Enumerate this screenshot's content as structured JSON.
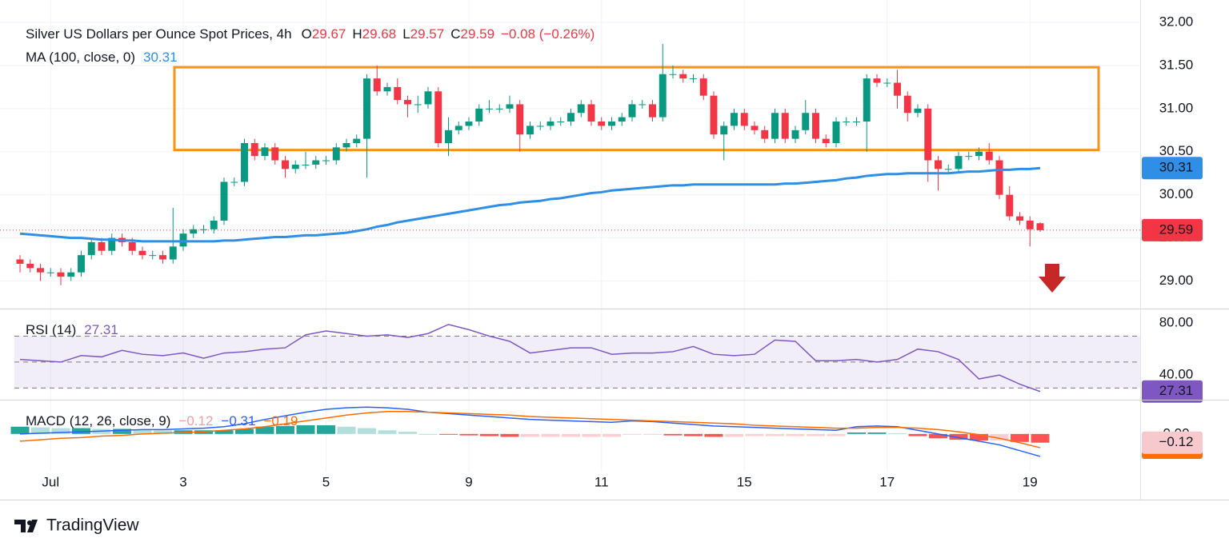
{
  "chart_data": [
    {
      "type": "candlestick",
      "title": "Silver US Dollars per Ounce Spot Prices, 4h",
      "ohlc": [
        {
          "label": "O",
          "value": "29.67"
        },
        {
          "label": "H",
          "value": "29.68"
        },
        {
          "label": "L",
          "value": "29.57"
        },
        {
          "label": "C",
          "value": "29.59"
        }
      ],
      "change": "−0.08 (−0.26%)",
      "up_color": "#089981",
      "down_color": "#f23645",
      "categories": [
        null,
        null,
        null,
        "Jul",
        null,
        null,
        null,
        null,
        null,
        null,
        null,
        null,
        null,
        null,
        null,
        null,
        "3",
        null,
        null,
        null,
        null,
        null,
        null,
        null,
        null,
        null,
        null,
        null,
        null,
        null,
        "5",
        null,
        null,
        null,
        null,
        null,
        null,
        null,
        null,
        null,
        null,
        null,
        null,
        null,
        "9",
        null,
        null,
        null,
        null,
        null,
        null,
        null,
        null,
        null,
        null,
        null,
        null,
        "11",
        null,
        null,
        null,
        null,
        null,
        null,
        null,
        null,
        null,
        null,
        null,
        null,
        null,
        "15",
        null,
        null,
        null,
        null,
        null,
        null,
        null,
        null,
        null,
        null,
        null,
        null,
        null,
        "17",
        null,
        null,
        null,
        null,
        null,
        null,
        null,
        null,
        null,
        null,
        null,
        null,
        null,
        "19",
        null
      ],
      "candles": [
        [
          29.25,
          29.3,
          29.1,
          29.2
        ],
        [
          29.2,
          29.25,
          29.1,
          29.15
        ],
        [
          29.15,
          29.2,
          29.0,
          29.1
        ],
        [
          29.1,
          29.15,
          29.05,
          29.1
        ],
        [
          29.1,
          29.15,
          28.95,
          29.05
        ],
        [
          29.05,
          29.15,
          29.0,
          29.1
        ],
        [
          29.1,
          29.35,
          29.05,
          29.3
        ],
        [
          29.3,
          29.5,
          29.25,
          29.45
        ],
        [
          29.45,
          29.5,
          29.3,
          29.35
        ],
        [
          29.35,
          29.55,
          29.3,
          29.5
        ],
        [
          29.5,
          29.55,
          29.4,
          29.45
        ],
        [
          29.45,
          29.5,
          29.3,
          29.35
        ],
        [
          29.35,
          29.4,
          29.25,
          29.3
        ],
        [
          29.3,
          29.35,
          29.25,
          29.3
        ],
        [
          29.3,
          29.35,
          29.2,
          29.25
        ],
        [
          29.25,
          29.85,
          29.2,
          29.4
        ],
        [
          29.4,
          29.6,
          29.35,
          29.55
        ],
        [
          29.55,
          29.65,
          29.5,
          29.6
        ],
        [
          29.6,
          29.65,
          29.55,
          29.6
        ],
        [
          29.6,
          29.75,
          29.55,
          29.7
        ],
        [
          29.7,
          30.2,
          29.65,
          30.15
        ],
        [
          30.15,
          30.2,
          30.1,
          30.15
        ],
        [
          30.15,
          30.65,
          30.1,
          30.6
        ],
        [
          30.6,
          30.65,
          30.4,
          30.45
        ],
        [
          30.45,
          30.6,
          30.4,
          30.55
        ],
        [
          30.55,
          30.6,
          30.35,
          30.4
        ],
        [
          30.4,
          30.45,
          30.2,
          30.3
        ],
        [
          30.3,
          30.4,
          30.25,
          30.35
        ],
        [
          30.35,
          30.5,
          30.3,
          30.35
        ],
        [
          30.35,
          30.45,
          30.3,
          30.4
        ],
        [
          30.4,
          30.45,
          30.35,
          30.4
        ],
        [
          30.4,
          30.6,
          30.35,
          30.55
        ],
        [
          30.55,
          30.65,
          30.5,
          30.6
        ],
        [
          30.6,
          30.7,
          30.55,
          30.65
        ],
        [
          30.65,
          31.4,
          30.2,
          31.35
        ],
        [
          31.35,
          31.5,
          31.15,
          31.2
        ],
        [
          31.2,
          31.3,
          31.15,
          31.25
        ],
        [
          31.25,
          31.35,
          31.05,
          31.1
        ],
        [
          31.1,
          31.15,
          30.9,
          31.05
        ],
        [
          31.05,
          31.15,
          30.95,
          31.05
        ],
        [
          31.05,
          31.25,
          31.0,
          31.2
        ],
        [
          31.2,
          31.25,
          30.55,
          30.6
        ],
        [
          30.6,
          30.9,
          30.45,
          30.75
        ],
        [
          30.75,
          30.85,
          30.7,
          30.8
        ],
        [
          30.8,
          30.9,
          30.75,
          30.85
        ],
        [
          30.85,
          31.05,
          30.8,
          31.0
        ],
        [
          31.0,
          31.1,
          30.95,
          31.0
        ],
        [
          31.0,
          31.05,
          30.95,
          31.0
        ],
        [
          31.0,
          31.15,
          30.95,
          31.05
        ],
        [
          31.05,
          31.1,
          30.5,
          30.7
        ],
        [
          30.7,
          30.85,
          30.65,
          30.8
        ],
        [
          30.8,
          30.85,
          30.75,
          30.8
        ],
        [
          30.8,
          30.9,
          30.75,
          30.85
        ],
        [
          30.85,
          30.9,
          30.8,
          30.85
        ],
        [
          30.85,
          31.0,
          30.8,
          30.95
        ],
        [
          30.95,
          31.1,
          30.9,
          31.05
        ],
        [
          31.05,
          31.1,
          30.8,
          30.85
        ],
        [
          30.85,
          30.9,
          30.75,
          30.8
        ],
        [
          30.8,
          30.9,
          30.75,
          30.85
        ],
        [
          30.85,
          30.95,
          30.8,
          30.9
        ],
        [
          30.9,
          31.1,
          30.85,
          31.05
        ],
        [
          31.05,
          31.1,
          31.0,
          31.05
        ],
        [
          31.05,
          31.1,
          30.85,
          30.9
        ],
        [
          30.9,
          31.75,
          30.85,
          31.4
        ],
        [
          31.4,
          31.5,
          31.35,
          31.4
        ],
        [
          31.4,
          31.45,
          31.3,
          31.35
        ],
        [
          31.35,
          31.4,
          31.3,
          31.35
        ],
        [
          31.35,
          31.4,
          31.1,
          31.15
        ],
        [
          31.15,
          31.2,
          30.65,
          30.7
        ],
        [
          30.7,
          30.85,
          30.4,
          30.8
        ],
        [
          30.8,
          31.0,
          30.75,
          30.95
        ],
        [
          30.95,
          31.0,
          30.75,
          30.8
        ],
        [
          30.8,
          30.85,
          30.7,
          30.75
        ],
        [
          30.75,
          30.8,
          30.6,
          30.65
        ],
        [
          30.65,
          31.0,
          30.6,
          30.95
        ],
        [
          30.95,
          31.0,
          30.6,
          30.65
        ],
        [
          30.65,
          30.8,
          30.6,
          30.75
        ],
        [
          30.75,
          31.1,
          30.7,
          30.95
        ],
        [
          30.95,
          31.0,
          30.6,
          30.65
        ],
        [
          30.65,
          30.7,
          30.55,
          30.6
        ],
        [
          30.6,
          30.9,
          30.55,
          30.85
        ],
        [
          30.85,
          30.9,
          30.8,
          30.85
        ],
        [
          30.85,
          30.9,
          30.8,
          30.85
        ],
        [
          30.85,
          31.4,
          30.5,
          31.35
        ],
        [
          31.35,
          31.4,
          31.25,
          31.3
        ],
        [
          31.3,
          31.35,
          31.25,
          31.3
        ],
        [
          31.3,
          31.45,
          31.0,
          31.15
        ],
        [
          31.15,
          31.2,
          30.85,
          30.95
        ],
        [
          30.95,
          31.05,
          30.9,
          31.0
        ],
        [
          31.0,
          31.05,
          30.15,
          30.4
        ],
        [
          30.4,
          30.45,
          30.05,
          30.3
        ],
        [
          30.3,
          30.35,
          30.25,
          30.3
        ],
        [
          30.3,
          30.5,
          30.25,
          30.45
        ],
        [
          30.45,
          30.5,
          30.4,
          30.45
        ],
        [
          30.45,
          30.55,
          30.4,
          30.5
        ],
        [
          30.5,
          30.6,
          30.35,
          30.4
        ],
        [
          30.4,
          30.45,
          29.95,
          30.0
        ],
        [
          30.0,
          30.1,
          29.7,
          29.75
        ],
        [
          29.75,
          29.8,
          29.65,
          29.7
        ],
        [
          29.7,
          29.75,
          29.4,
          29.6
        ],
        [
          29.67,
          29.68,
          29.57,
          29.59
        ]
      ],
      "last_label": "29.59",
      "ma": {
        "name": "MA (100, close, 0)",
        "color": "#2f8ee5",
        "last_label": "30.31",
        "values": [
          29.55,
          29.54,
          29.53,
          29.52,
          29.51,
          29.5,
          29.5,
          29.49,
          29.48,
          29.48,
          29.47,
          29.47,
          29.46,
          29.46,
          29.46,
          29.46,
          29.46,
          29.46,
          29.46,
          29.46,
          29.47,
          29.47,
          29.48,
          29.49,
          29.5,
          29.51,
          29.51,
          29.52,
          29.53,
          29.53,
          29.54,
          29.55,
          29.56,
          29.58,
          29.6,
          29.63,
          29.65,
          29.68,
          29.7,
          29.72,
          29.74,
          29.76,
          29.78,
          29.8,
          29.82,
          29.84,
          29.86,
          29.88,
          29.89,
          29.91,
          29.92,
          29.93,
          29.95,
          29.96,
          29.98,
          30.0,
          30.02,
          30.03,
          30.05,
          30.06,
          30.07,
          30.08,
          30.09,
          30.1,
          30.11,
          30.11,
          30.12,
          30.12,
          30.12,
          30.12,
          30.12,
          30.12,
          30.12,
          30.12,
          30.12,
          30.13,
          30.13,
          30.14,
          30.15,
          30.16,
          30.17,
          30.19,
          30.2,
          30.22,
          30.23,
          30.24,
          30.24,
          30.25,
          30.25,
          30.25,
          30.25,
          30.25,
          30.26,
          30.27,
          30.27,
          30.28,
          30.29,
          30.29,
          30.3,
          30.3,
          30.31
        ]
      },
      "range_box": {
        "top": 31.48,
        "bottom": 30.52,
        "color": "#f7931a"
      },
      "ylim": [
        28.68,
        32.26
      ],
      "yticks": [
        {
          "value": 29,
          "label": "29.00"
        },
        {
          "value": 29.5,
          "label": "29.50"
        },
        {
          "value": 30,
          "label": "30.00"
        },
        {
          "value": 30.5,
          "label": "30.50"
        },
        {
          "value": 31,
          "label": "31.00"
        },
        {
          "value": 31.5,
          "label": "31.50"
        },
        {
          "value": 32,
          "label": "32.00"
        }
      ],
      "grid": true
    },
    {
      "type": "line",
      "title": "RSI (14)",
      "color": "#7e57c2",
      "values": [
        52,
        51,
        50,
        55,
        54,
        59,
        56,
        55,
        57,
        53,
        57,
        58,
        60,
        61,
        71,
        74,
        72,
        70,
        71,
        69,
        72,
        79,
        75,
        70,
        66,
        57,
        59,
        61,
        61,
        56,
        57,
        57,
        58,
        62,
        56,
        55,
        56,
        67,
        66,
        51,
        51,
        52,
        50,
        52,
        60,
        58,
        52,
        37,
        40,
        33,
        27.31
      ],
      "levels": [
        70,
        50,
        30
      ],
      "ylim": [
        21,
        90
      ],
      "yticks": [
        {
          "value": 80,
          "label": "80.00"
        },
        {
          "value": 40,
          "label": "40.00"
        }
      ]
    },
    {
      "type": "macd",
      "title": "MACD (12, 26, close, 9)",
      "series": [
        {
          "color": "#26a69a",
          "down_color": "#ff5252",
          "last_label": "−0.12",
          "values": [
            0.1,
            0.09,
            0.08,
            0.08,
            0.07,
            0.07,
            0.06,
            0.05,
            0.05,
            0.05,
            0.05,
            0.07,
            0.1,
            0.11,
            0.12,
            0.12,
            0.1,
            0.08,
            0.05,
            0.03,
            0,
            -0.01,
            -0.02,
            -0.03,
            -0.04,
            -0.04,
            -0.04,
            -0.04,
            -0.04,
            -0.04,
            -0.01,
            -0.01,
            -0.02,
            -0.03,
            -0.04,
            -0.04,
            -0.03,
            -0.03,
            -0.03,
            -0.03,
            -0.03,
            0.02,
            0.02,
            0.01,
            -0.03,
            -0.06,
            -0.08,
            -0.09,
            -0.09,
            -0.11,
            -0.12
          ]
        },
        {
          "color": "#2962ff",
          "last_label": "−0.31",
          "values": [
            0.0,
            0.01,
            0.02,
            0.03,
            0.04,
            0.05,
            0.06,
            0.06,
            0.07,
            0.08,
            0.1,
            0.14,
            0.2,
            0.25,
            0.3,
            0.34,
            0.36,
            0.37,
            0.36,
            0.34,
            0.3,
            0.28,
            0.26,
            0.24,
            0.22,
            0.2,
            0.19,
            0.18,
            0.17,
            0.16,
            0.18,
            0.17,
            0.15,
            0.13,
            0.11,
            0.1,
            0.09,
            0.08,
            0.07,
            0.06,
            0.05,
            0.1,
            0.11,
            0.1,
            0.05,
            0.0,
            -0.05,
            -0.1,
            -0.15,
            -0.23,
            -0.31
          ]
        },
        {
          "color": "#ff6d00",
          "last_label": "−0.19",
          "values": [
            -0.1,
            -0.08,
            -0.06,
            -0.05,
            -0.03,
            -0.02,
            0.0,
            0.01,
            0.02,
            0.03,
            0.05,
            0.07,
            0.1,
            0.14,
            0.18,
            0.22,
            0.26,
            0.29,
            0.31,
            0.31,
            0.3,
            0.29,
            0.28,
            0.27,
            0.26,
            0.24,
            0.23,
            0.22,
            0.21,
            0.2,
            0.19,
            0.18,
            0.17,
            0.16,
            0.15,
            0.14,
            0.12,
            0.11,
            0.1,
            0.09,
            0.08,
            0.08,
            0.09,
            0.09,
            0.08,
            0.06,
            0.03,
            -0.01,
            -0.06,
            -0.12,
            -0.19
          ]
        }
      ],
      "ylim": [
        -0.52,
        0.45
      ],
      "yticks": [
        {
          "value": 0,
          "label": "0.00"
        }
      ]
    }
  ],
  "brand": "TradingView"
}
